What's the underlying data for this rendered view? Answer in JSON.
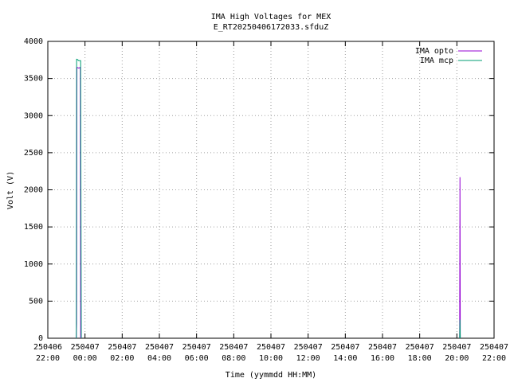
{
  "chart_data": {
    "type": "line",
    "title": "IMA High Voltages for MEX",
    "subtitle": "E_RT20250406172033.sfduZ",
    "x_label": "Time (yymmdd HH:MM)",
    "y_label": "Volt (V)",
    "x": [
      "250406 23:32",
      "250406 23:33",
      "250406 23:34",
      "250406 23:40",
      "250406 23:45",
      "250406 23:46",
      "250406 23:48",
      "250407 12:00",
      "250407 20:09",
      "250407 20:10",
      "250407 20:11"
    ],
    "series": [
      {
        "name": "IMA opto",
        "color": "#9400d3",
        "values": [
          0,
          200,
          3650,
          3640,
          3650,
          0,
          null,
          null,
          0,
          2170,
          0
        ]
      },
      {
        "name": "IMA mcp",
        "color": "#009e73",
        "values": [
          0,
          3760,
          3760,
          3740,
          3740,
          3740,
          0,
          null,
          0,
          250,
          0
        ]
      }
    ],
    "xlim": [
      "250406 22:00",
      "250407 22:00"
    ],
    "xticks": [
      "250406 22:00",
      "250407 00:00",
      "250407 02:00",
      "250407 04:00",
      "250407 06:00",
      "250407 08:00",
      "250407 10:00",
      "250407 12:00",
      "250407 14:00",
      "250407 16:00",
      "250407 18:00",
      "250407 20:00",
      "250407 22:00"
    ],
    "ylim": [
      0,
      4000
    ],
    "yticks": [
      0,
      500,
      1000,
      1500,
      2000,
      2500,
      3000,
      3500,
      4000
    ],
    "grid": true,
    "legend": "top-right"
  }
}
